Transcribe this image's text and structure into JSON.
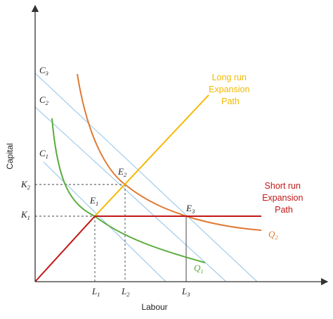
{
  "axes": {
    "x_label": "Labour",
    "y_label": "Capital"
  },
  "ticks": {
    "L1": {
      "letter": "L",
      "sub": "1"
    },
    "L2": {
      "letter": "L",
      "sub": "2"
    },
    "L3": {
      "letter": "L",
      "sub": "3"
    },
    "K1": {
      "letter": "K",
      "sub": "1"
    },
    "K2": {
      "letter": "K",
      "sub": "2"
    }
  },
  "isocosts": {
    "C1": {
      "letter": "C",
      "sub": "1"
    },
    "C2": {
      "letter": "C",
      "sub": "2"
    },
    "C3": {
      "letter": "C",
      "sub": "3"
    }
  },
  "isoquants": {
    "Q1": {
      "letter": "Q",
      "sub": "1"
    },
    "Q2": {
      "letter": "Q",
      "sub": "2"
    }
  },
  "points": {
    "E1": {
      "letter": "E",
      "sub": "1"
    },
    "E2": {
      "letter": "E",
      "sub": "2"
    },
    "E3": {
      "letter": "E",
      "sub": "3"
    }
  },
  "annotations": {
    "long_run": [
      "Long run",
      "Expansion",
      "Path"
    ],
    "short_run": [
      "Short run",
      "Expansion",
      "Path"
    ]
  },
  "colors": {
    "axis": "#333333",
    "isocost": "#8ec3e6",
    "q1": "#5aac3c",
    "q2": "#e07a33",
    "long_run": "#f5b800",
    "short_run": "#c21818",
    "dashed": "#444444"
  }
}
